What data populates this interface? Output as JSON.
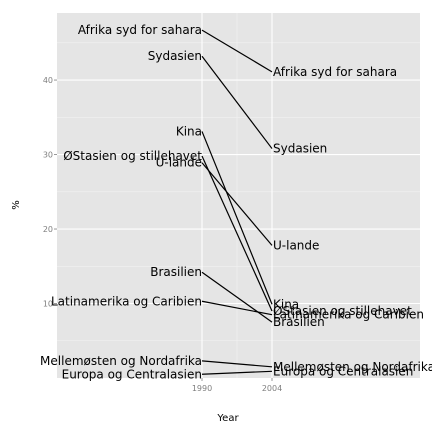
{
  "chart_data": {
    "type": "line",
    "title": "",
    "xlabel": "Year",
    "ylabel": "%",
    "x": [
      1990,
      2004
    ],
    "x_ticks": [
      "1990",
      "2004"
    ],
    "y_ticks": [
      10,
      20,
      30,
      40
    ],
    "ylim": [
      0,
      49
    ],
    "grid": true,
    "legend": "none",
    "series": [
      {
        "name": "Afrika syd for sahara",
        "values": [
          46.7,
          41.1
        ]
      },
      {
        "name": "Sydasien",
        "values": [
          43.2,
          30.8
        ]
      },
      {
        "name": "Kina",
        "values": [
          33.1,
          9.9
        ]
      },
      {
        "name": "ØStasien og stillehavet",
        "values": [
          29.8,
          9.0
        ]
      },
      {
        "name": "U-lande",
        "values": [
          28.9,
          17.8
        ]
      },
      {
        "name": "Brasilien",
        "values": [
          14.2,
          7.5
        ]
      },
      {
        "name": "Latinamerika og Caribien",
        "values": [
          10.3,
          8.5
        ]
      },
      {
        "name": "Mellemøsten og Nordafrika",
        "values": [
          2.3,
          1.5
        ]
      },
      {
        "name": "Europa og Centralasien",
        "values": [
          0.5,
          0.9
        ]
      }
    ]
  }
}
